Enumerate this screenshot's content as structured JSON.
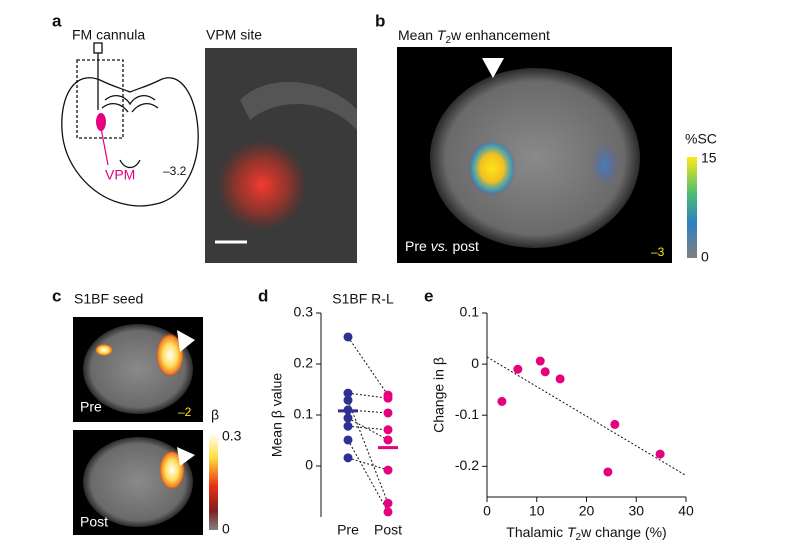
{
  "panels": {
    "a": {
      "label": "a",
      "schematic_title": "FM cannula",
      "region": "VPM",
      "coordinate": "–3.2",
      "image_title": "VPM site"
    },
    "b": {
      "label": "b",
      "title": [
        "Mean ",
        "T",
        "2",
        "w enhancement"
      ],
      "caption": [
        "Pre ",
        "vs.",
        " post"
      ],
      "coordinate": "–3",
      "colorbar": {
        "title": "%SC",
        "max": 15,
        "min": 0
      }
    },
    "c": {
      "label": "c",
      "title": "S1BF seed",
      "top_caption": "Pre",
      "bottom_caption": "Post",
      "coordinate": "–2",
      "colorbar": {
        "title": "β",
        "max": 0.3,
        "min": 0
      }
    },
    "d": {
      "label": "d"
    },
    "e": {
      "label": "e"
    }
  },
  "chart_data": [
    {
      "type": "paired-dots",
      "title": "S1BF R-L",
      "y_label": "Mean β value",
      "categories": [
        "Pre",
        "Post"
      ],
      "groups": [
        {
          "color": "#2e3192",
          "values": [
            0.253,
            0.143,
            0.129,
            0.11,
            0.094,
            0.078,
            0.051,
            0.016
          ],
          "mean": 0.108
        },
        {
          "color": "#e6007e",
          "values": [
            0.139,
            0.133,
            -0.073,
            0.104,
            0.051,
            0.071,
            -0.09,
            -0.008
          ],
          "mean": 0.036
        }
      ],
      "ylim": [
        -0.1,
        0.3
      ],
      "yticks": [
        0,
        0.1,
        0.2,
        0.3
      ]
    },
    {
      "type": "scatter",
      "x_label": [
        "Thalamic ",
        "T",
        "2",
        "w change (%)"
      ],
      "y_label": "Change in β",
      "color": "#e6007e",
      "x": [
        3.0,
        6.2,
        10.7,
        11.7,
        14.7,
        24.3,
        25.7,
        34.8
      ],
      "values": [
        -0.073,
        -0.01,
        0.006,
        -0.015,
        -0.029,
        -0.211,
        -0.118,
        -0.176
      ],
      "fit_line": {
        "x": [
          0,
          40
        ],
        "y": [
          0.014,
          -0.218
        ]
      },
      "xlim": [
        0,
        40
      ],
      "xticks": [
        0,
        10,
        20,
        30,
        40
      ],
      "ylim": [
        -0.26,
        0.1
      ],
      "yticks": [
        -0.2,
        -0.1,
        0,
        0.1
      ]
    }
  ]
}
